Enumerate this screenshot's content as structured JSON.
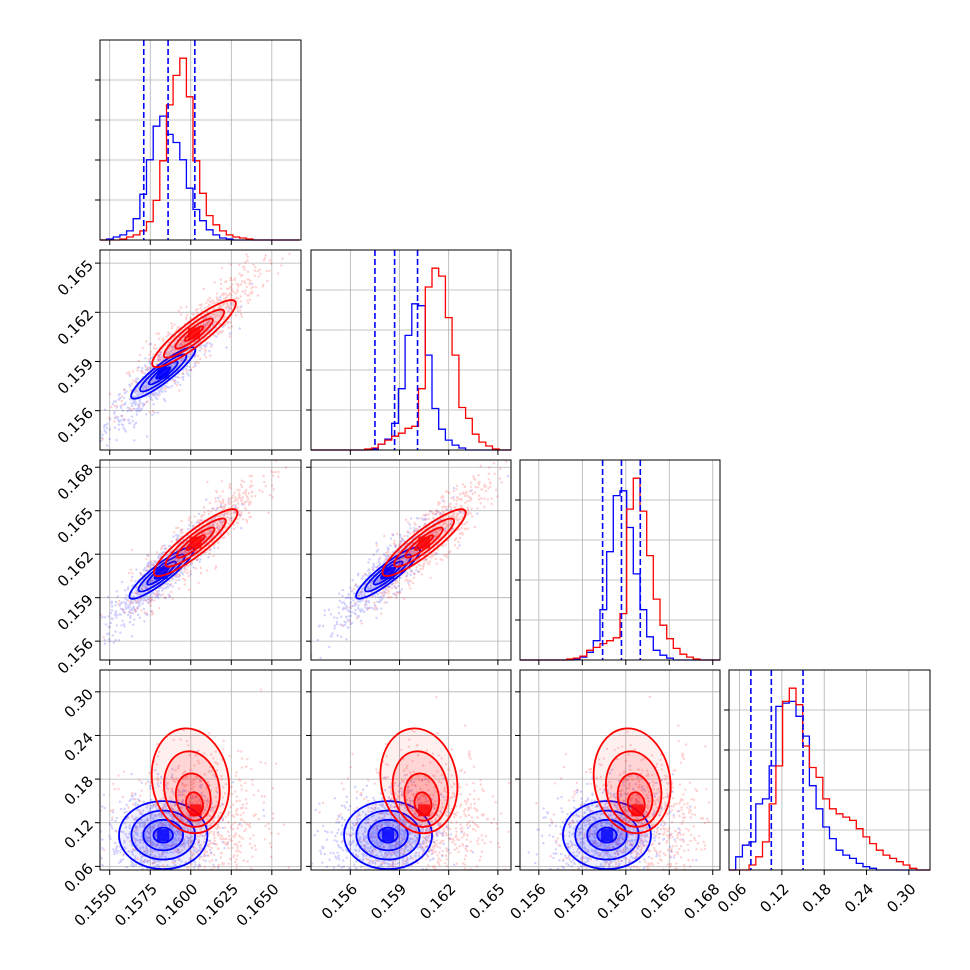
{
  "chart_data": {
    "type": "corner",
    "title": "",
    "parameters": [
      "",
      "",
      "",
      ""
    ],
    "series_colors": {
      "blue": "#0000ff",
      "red": "#ff0000"
    },
    "quantile_line_color": "#0000ff",
    "grid": true,
    "panels": {
      "diag_1": {
        "xlim": [
          0.1544,
          0.1668
        ],
        "bin_width": 0.00041,
        "blue_counts": [
          0,
          1,
          3,
          5,
          9,
          21,
          45,
          79,
          112,
          122,
          104,
          96,
          79,
          51,
          30,
          19,
          10,
          5,
          2,
          1,
          0,
          0,
          0,
          0,
          0,
          0,
          0,
          0,
          0,
          0
        ],
        "red_counts": [
          0,
          0,
          0,
          1,
          3,
          5,
          9,
          18,
          39,
          78,
          133,
          162,
          179,
          141,
          78,
          46,
          24,
          15,
          9,
          5,
          3,
          2,
          1,
          0,
          0,
          0,
          0,
          0,
          0,
          0
        ],
        "quantiles_blue": [
          0.1571,
          0.1586,
          0.16025
        ]
      },
      "diag_2": {
        "xlim": [
          0.1536,
          0.1658
        ],
        "bin_width": 0.00041,
        "blue_counts": [
          0,
          0,
          0,
          0,
          0,
          0,
          0,
          0,
          0,
          1,
          6,
          11,
          27,
          62,
          116,
          148,
          146,
          96,
          42,
          21,
          10,
          5,
          2,
          0,
          0,
          0,
          0,
          0,
          0,
          0
        ],
        "red_counts": [
          0,
          0,
          0,
          0,
          0,
          0,
          0,
          0,
          1,
          2,
          6,
          10,
          14,
          17,
          22,
          24,
          62,
          165,
          184,
          176,
          134,
          96,
          43,
          32,
          16,
          8,
          4,
          1,
          0,
          0
        ],
        "quantiles_blue": [
          0.1575,
          0.1587,
          0.1601
        ]
      },
      "diag_3": {
        "xlim": [
          0.1547,
          0.1685
        ],
        "bin_width": 0.00046,
        "blue_counts": [
          0,
          0,
          0,
          0,
          0,
          0,
          0,
          0,
          1,
          3,
          8,
          20,
          52,
          112,
          170,
          175,
          137,
          89,
          52,
          24,
          10,
          5,
          2,
          0,
          0,
          0,
          0,
          0,
          0,
          0
        ],
        "red_counts": [
          0,
          0,
          0,
          0,
          0,
          0,
          0,
          1,
          2,
          4,
          10,
          13,
          17,
          20,
          23,
          48,
          156,
          188,
          154,
          108,
          63,
          36,
          22,
          12,
          6,
          3,
          1,
          0,
          0,
          0
        ],
        "quantiles_blue": [
          0.1604,
          0.1617,
          0.163
        ]
      },
      "diag_4": {
        "xlim": [
          0.045,
          0.33
        ],
        "bin_width": 0.0095,
        "blue_counts": [
          0,
          8,
          15,
          17,
          40,
          43,
          63,
          99,
          101,
          102,
          93,
          81,
          51,
          37,
          26,
          19,
          12,
          9,
          7,
          4,
          2,
          1,
          0,
          0,
          0,
          0,
          0,
          0,
          0,
          0
        ],
        "red_counts": [
          0,
          0,
          0,
          3,
          8,
          17,
          40,
          63,
          102,
          110,
          100,
          75,
          62,
          56,
          43,
          37,
          34,
          32,
          30,
          25,
          20,
          16,
          12,
          9,
          7,
          5,
          3,
          1,
          0,
          0
        ],
        "quantiles_blue": [
          0.076,
          0.105,
          0.15
        ]
      },
      "scatter_2_1": {
        "xlim": [
          0.1544,
          0.1668
        ],
        "ylim": [
          0.1536,
          0.1658
        ],
        "blue_centre": [
          0.1583,
          0.1583
        ],
        "red_centre": [
          0.1602,
          0.1607
        ],
        "correlation": 0.85
      },
      "scatter_3_1": {
        "xlim": [
          0.1544,
          0.1668
        ],
        "ylim": [
          0.1547,
          0.1685
        ],
        "blue_centre": [
          0.1582,
          0.1607
        ],
        "red_centre": [
          0.1603,
          0.1628
        ],
        "correlation": 0.85
      },
      "scatter_3_2": {
        "xlim": [
          0.1536,
          0.1658
        ],
        "ylim": [
          0.1547,
          0.1685
        ],
        "blue_centre": [
          0.1583,
          0.1607
        ],
        "red_centre": [
          0.1605,
          0.1628
        ],
        "correlation": 0.9
      },
      "scatter_4_1": {
        "xlim": [
          0.1544,
          0.1668
        ],
        "ylim": [
          0.055,
          0.33
        ],
        "blue_centre": [
          0.1583,
          0.103
        ],
        "red_centre": [
          0.1603,
          0.137
        ]
      },
      "scatter_4_2": {
        "xlim": [
          0.1536,
          0.1658
        ],
        "ylim": [
          0.055,
          0.33
        ],
        "blue_centre": [
          0.1583,
          0.103
        ],
        "red_centre": [
          0.1605,
          0.137
        ]
      },
      "scatter_4_3": {
        "xlim": [
          0.1547,
          0.1685
        ],
        "ylim": [
          0.055,
          0.33
        ],
        "blue_centre": [
          0.1607,
          0.103
        ],
        "red_centre": [
          0.1628,
          0.137
        ]
      }
    },
    "axes": {
      "x_col1": {
        "ticks": [
          0.155,
          0.1575,
          0.16,
          0.1625,
          0.165
        ],
        "labels": [
          "0.1550",
          "0.1575",
          "0.1600",
          "0.1625",
          "0.1650"
        ]
      },
      "x_col2": {
        "ticks": [
          0.156,
          0.159,
          0.162,
          0.165
        ],
        "labels": [
          "0.156",
          "0.159",
          "0.162",
          "0.165"
        ]
      },
      "x_col3": {
        "ticks": [
          0.156,
          0.159,
          0.162,
          0.165,
          0.168
        ],
        "labels": [
          "0.156",
          "0.159",
          "0.162",
          "0.165",
          "0.168"
        ]
      },
      "x_col4": {
        "ticks": [
          0.06,
          0.12,
          0.18,
          0.24,
          0.3
        ],
        "labels": [
          "0.06",
          "0.12",
          "0.18",
          "0.24",
          "0.30"
        ]
      },
      "y_row2": {
        "ticks": [
          0.156,
          0.159,
          0.162,
          0.165
        ],
        "labels": [
          "0.156",
          "0.159",
          "0.162",
          "0.165"
        ]
      },
      "y_row3": {
        "ticks": [
          0.156,
          0.159,
          0.162,
          0.165,
          0.168
        ],
        "labels": [
          "0.156",
          "0.159",
          "0.162",
          "0.165",
          "0.168"
        ]
      },
      "y_row4": {
        "ticks": [
          0.06,
          0.12,
          0.18,
          0.24,
          0.3
        ],
        "labels": [
          "0.06",
          "0.12",
          "0.18",
          "0.24",
          "0.30"
        ]
      }
    }
  }
}
